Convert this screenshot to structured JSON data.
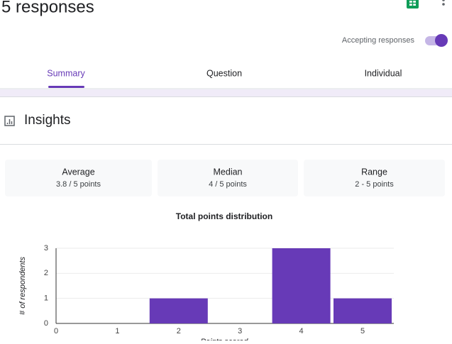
{
  "header": {
    "title": "5 responses",
    "accepting_label": "Accepting responses"
  },
  "tabs": [
    "Summary",
    "Question",
    "Individual"
  ],
  "insights": {
    "title": "Insights",
    "stats": [
      {
        "label": "Average",
        "value": "3.8 / 5 points"
      },
      {
        "label": "Median",
        "value": "4 / 5 points"
      },
      {
        "label": "Range",
        "value": "2 - 5 points"
      }
    ]
  },
  "chart_data": {
    "type": "bar",
    "title": "Total points distribution",
    "x_label": "Points scored",
    "y_label": "# of respondents",
    "categories": [
      "0",
      "1",
      "2",
      "3",
      "4",
      "5"
    ],
    "values": [
      0,
      0,
      1,
      0,
      3,
      1
    ],
    "color": "#673ab7",
    "ylim": [
      0,
      3
    ],
    "yticks": [
      0,
      1,
      2,
      3
    ],
    "grid": true
  }
}
